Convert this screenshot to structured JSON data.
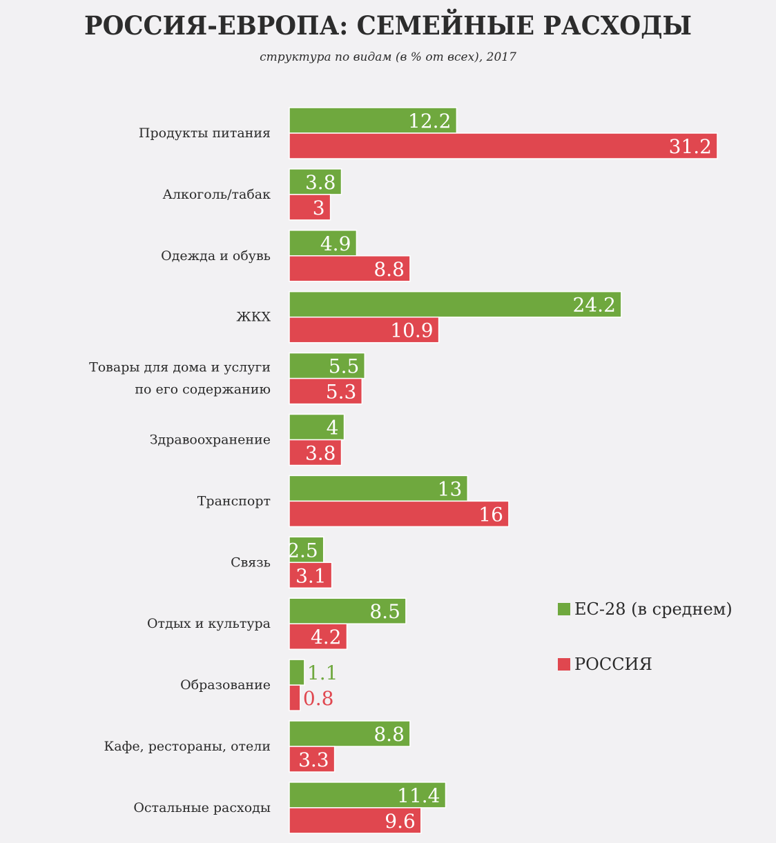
{
  "chart_data": {
    "type": "bar",
    "orientation": "horizontal",
    "title": "РОССИЯ-ЕВРОПА: СЕМЕЙНЫЕ РАСХОДЫ",
    "subtitle": "структура по видам (в % от всех), 2017",
    "categories": [
      [
        "Продукты питания"
      ],
      [
        "Алкоголь/табак"
      ],
      [
        "Одежда и обувь"
      ],
      [
        "ЖКХ"
      ],
      [
        "Товары для дома и услуги",
        "по его содержанию"
      ],
      [
        "Здравоохранение"
      ],
      [
        "Транспорт"
      ],
      [
        "Связь"
      ],
      [
        "Отдых и культура"
      ],
      [
        "Образование"
      ],
      [
        "Кафе, рестораны, отели"
      ],
      [
        "Остальные расходы"
      ]
    ],
    "series": [
      {
        "name": "ЕС-28 (в среднем)",
        "color": "#6fa83e",
        "values": [
          12.2,
          3.8,
          4.9,
          24.2,
          5.5,
          4,
          13,
          2.5,
          8.5,
          1.1,
          8.8,
          11.4
        ],
        "labels": [
          "12.2",
          "3.8",
          "4.9",
          "24.2",
          "5.5",
          "4",
          "13",
          "2.5",
          "8.5",
          "1.1",
          "8.8",
          "11.4"
        ]
      },
      {
        "name": "РОССИЯ",
        "color": "#e0474f",
        "values": [
          31.2,
          3,
          8.8,
          10.9,
          5.3,
          3.8,
          16,
          3.1,
          4.2,
          0.8,
          3.3,
          9.6
        ],
        "labels": [
          "31.2",
          "3",
          "8.8",
          "10.9",
          "5.3",
          "3.8",
          "16",
          "3.1",
          "4.2",
          "0.8",
          "3.3",
          "9.6"
        ]
      }
    ],
    "xlim": [
      0,
      31.2
    ],
    "legend": "right",
    "grid": false
  }
}
